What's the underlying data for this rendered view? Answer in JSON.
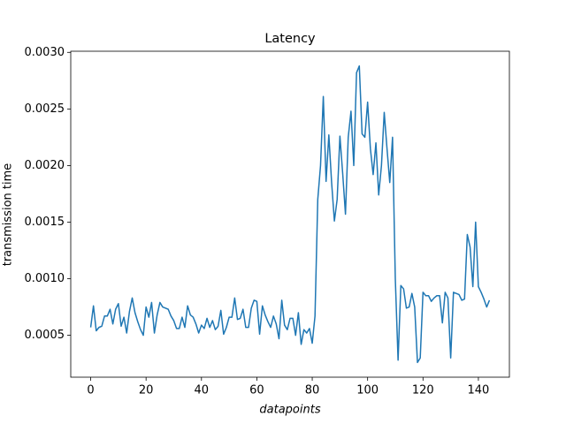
{
  "chart_data": {
    "type": "line",
    "title": "Latency",
    "x_label": "datapoints",
    "y_label": "transmission time",
    "x": [
      0,
      1,
      2,
      3,
      4,
      5,
      6,
      7,
      8,
      9,
      10,
      11,
      12,
      13,
      14,
      15,
      16,
      17,
      18,
      19,
      20,
      21,
      22,
      23,
      24,
      25,
      26,
      27,
      28,
      29,
      30,
      31,
      32,
      33,
      34,
      35,
      36,
      37,
      38,
      39,
      40,
      41,
      42,
      43,
      44,
      45,
      46,
      47,
      48,
      49,
      50,
      51,
      52,
      53,
      54,
      55,
      56,
      57,
      58,
      59,
      60,
      61,
      62,
      63,
      64,
      65,
      66,
      67,
      68,
      69,
      70,
      71,
      72,
      73,
      74,
      75,
      76,
      77,
      78,
      79,
      80,
      81,
      82,
      83,
      84,
      85,
      86,
      87,
      88,
      89,
      90,
      91,
      92,
      93,
      94,
      95,
      96,
      97,
      98,
      99,
      100,
      101,
      102,
      103,
      104,
      105,
      106,
      107,
      108,
      109,
      110,
      111,
      112,
      113,
      114,
      115,
      116,
      117,
      118,
      119,
      120,
      121,
      122,
      123,
      124,
      125,
      126,
      127,
      128,
      129,
      130,
      131,
      132,
      133,
      134,
      135,
      136,
      137,
      138,
      139,
      140,
      141,
      142,
      143,
      144
    ],
    "series": [
      {
        "name": "latency",
        "color": "#1f77b4",
        "values": [
          0.00057,
          0.00076,
          0.00054,
          0.00057,
          0.00058,
          0.00067,
          0.00067,
          0.00073,
          0.0006,
          0.00073,
          0.00078,
          0.00058,
          0.00066,
          0.00052,
          0.00071,
          0.00083,
          0.0007,
          0.00062,
          0.00055,
          0.0005,
          0.00075,
          0.00066,
          0.00079,
          0.00052,
          0.00068,
          0.00079,
          0.00075,
          0.00074,
          0.00073,
          0.00067,
          0.00063,
          0.00056,
          0.00056,
          0.00066,
          0.00057,
          0.00076,
          0.00068,
          0.00066,
          0.0006,
          0.00052,
          0.00059,
          0.00056,
          0.00065,
          0.00057,
          0.00063,
          0.00055,
          0.00058,
          0.00072,
          0.00051,
          0.00057,
          0.00066,
          0.00066,
          0.00083,
          0.00064,
          0.00065,
          0.00073,
          0.00057,
          0.00057,
          0.00074,
          0.00081,
          0.0008,
          0.00051,
          0.00076,
          0.00068,
          0.00062,
          0.00057,
          0.00067,
          0.0006,
          0.00047,
          0.00081,
          0.00059,
          0.00055,
          0.00065,
          0.00065,
          0.0005,
          0.0007,
          0.00042,
          0.00055,
          0.00052,
          0.00056,
          0.00043,
          0.00067,
          0.0017,
          0.002,
          0.00261,
          0.00186,
          0.00227,
          0.00185,
          0.00151,
          0.0017,
          0.00226,
          0.00193,
          0.00157,
          0.00225,
          0.00248,
          0.002,
          0.00282,
          0.00288,
          0.00228,
          0.00225,
          0.00256,
          0.00215,
          0.00192,
          0.0022,
          0.00174,
          0.002,
          0.00247,
          0.00215,
          0.00185,
          0.00225,
          0.001,
          0.00028,
          0.00094,
          0.00091,
          0.00074,
          0.00075,
          0.00087,
          0.00075,
          0.00026,
          0.0003,
          0.00088,
          0.00085,
          0.00085,
          0.0008,
          0.00083,
          0.00085,
          0.00085,
          0.00061,
          0.00088,
          0.00083,
          0.0003,
          0.00088,
          0.00087,
          0.00086,
          0.00081,
          0.00082,
          0.00139,
          0.00128,
          0.00093,
          0.0015,
          0.00093,
          0.00088,
          0.00082,
          0.00075,
          0.00081
        ]
      }
    ],
    "xlim": [
      -7.2,
      151.2
    ],
    "ylim": [
      0.00013,
      0.00301
    ],
    "xticks": [
      0,
      20,
      40,
      60,
      80,
      100,
      120,
      140
    ],
    "yticks": [
      0.0005,
      {
        "value": 0.001,
        "label": "0.0010"
      },
      0.0015,
      {
        "value": 0.002,
        "label": "0.0020"
      },
      0.0025,
      {
        "value": 0.003,
        "label": "0.0030"
      }
    ],
    "grid": false
  }
}
